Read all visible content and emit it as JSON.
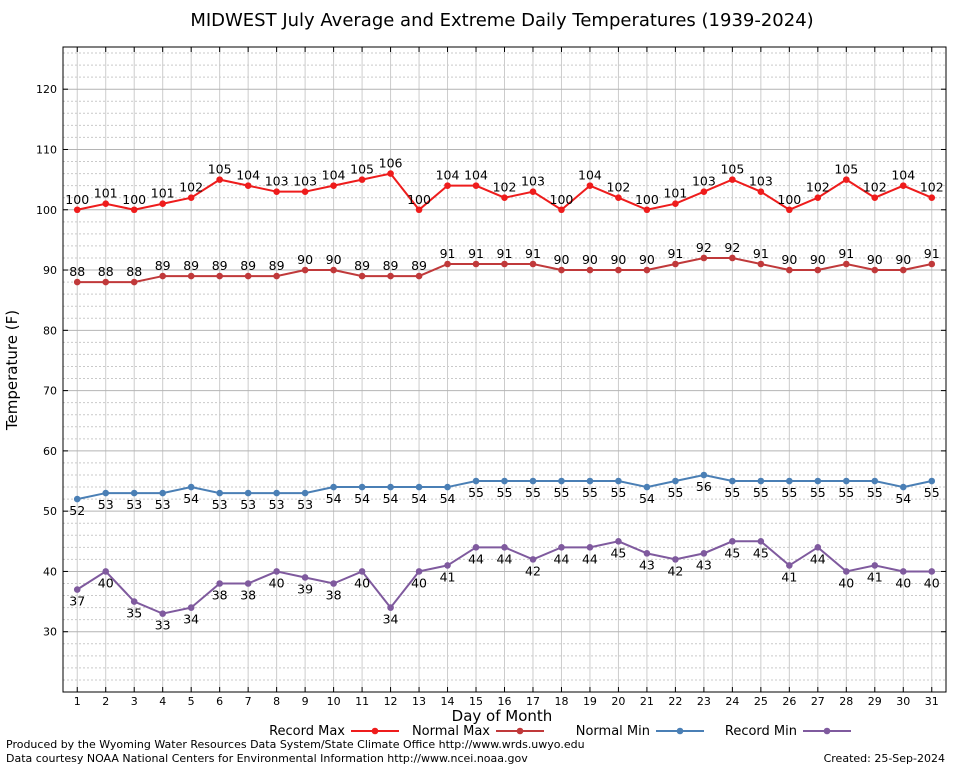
{
  "chart_data": {
    "type": "line",
    "title": "MIDWEST July Average and Extreme Daily Temperatures (1939-2024)",
    "xlabel": "Day of Month",
    "ylabel": "Temperature (F)",
    "xlim": [
      0.5,
      31.5
    ],
    "ylim": [
      20,
      127
    ],
    "yticks": [
      30,
      40,
      50,
      60,
      70,
      80,
      90,
      100,
      110,
      120
    ],
    "x": [
      1,
      2,
      3,
      4,
      5,
      6,
      7,
      8,
      9,
      10,
      11,
      12,
      13,
      14,
      15,
      16,
      17,
      18,
      19,
      20,
      21,
      22,
      23,
      24,
      25,
      26,
      27,
      28,
      29,
      30,
      31
    ],
    "grid": true,
    "legend_position": "bottom",
    "series": [
      {
        "name": "Record Max",
        "color": "#ee1c1c",
        "label_position": "above",
        "values": [
          100,
          101,
          100,
          101,
          102,
          105,
          104,
          103,
          103,
          104,
          105,
          106,
          100,
          104,
          104,
          102,
          103,
          100,
          104,
          102,
          100,
          101,
          103,
          105,
          103,
          100,
          102,
          105,
          102,
          104,
          102
        ]
      },
      {
        "name": "Normal Max",
        "color": "#c0393a",
        "label_position": "above",
        "values": [
          88,
          88,
          88,
          89,
          89,
          89,
          89,
          89,
          90,
          90,
          89,
          89,
          89,
          91,
          91,
          91,
          91,
          90,
          90,
          90,
          90,
          91,
          92,
          92,
          91,
          90,
          90,
          91,
          90,
          90,
          91
        ]
      },
      {
        "name": "Normal Min",
        "color": "#4a7fb5",
        "label_position": "below",
        "values": [
          52,
          53,
          53,
          53,
          54,
          53,
          53,
          53,
          53,
          54,
          54,
          54,
          54,
          54,
          55,
          55,
          55,
          55,
          55,
          55,
          54,
          55,
          56,
          55,
          55,
          55,
          55,
          55,
          55,
          54,
          55
        ]
      },
      {
        "name": "Record Min",
        "color": "#7f5a9e",
        "label_position": "below",
        "values": [
          37,
          40,
          35,
          33,
          34,
          38,
          38,
          40,
          39,
          38,
          40,
          34,
          40,
          41,
          44,
          44,
          42,
          44,
          44,
          45,
          43,
          42,
          43,
          45,
          45,
          41,
          44,
          40,
          41,
          40,
          40
        ]
      }
    ]
  },
  "footer": {
    "produced_by": "Produced by the Wyoming Water Resources Data System/State Climate Office http://www.wrds.uwyo.edu",
    "courtesy": "Data courtesy NOAA National Centers for Environmental Information http://www.ncei.noaa.gov",
    "created": "Created:  25-Sep-2024"
  }
}
